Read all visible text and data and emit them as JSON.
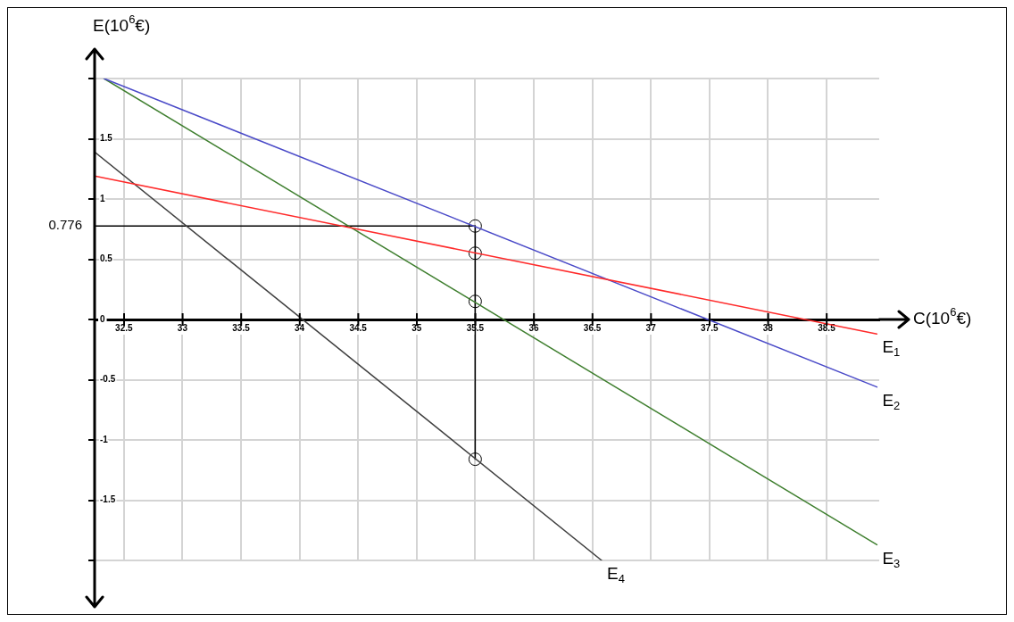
{
  "chart_data": {
    "type": "line",
    "xlabel": "C(10$^{6}$€)",
    "ylabel": "E(10$^{6}$€)",
    "xlim": [
      32.25,
      38.95
    ],
    "ylim": [
      -2,
      2
    ],
    "xticks": [
      32.5,
      33,
      33.5,
      34,
      34.5,
      35,
      35.5,
      36,
      36.5,
      37,
      37.5,
      38,
      38.5
    ],
    "yticks": [
      {
        "value": -2,
        "label": null
      },
      -1.5,
      -1,
      -0.5,
      0,
      0.5,
      1,
      1.5,
      {
        "value": 2,
        "label": null
      }
    ],
    "grid": true,
    "legend": false,
    "annotations": [
      {
        "text": "0.776",
        "x": 32.25,
        "y": 0.776
      }
    ],
    "series": [
      {
        "name": "E$_{1}$",
        "color": "#ff2a2a",
        "x": [
          32.25,
          38.93
        ],
        "values": [
          1.19,
          -0.12
        ]
      },
      {
        "name": "E$_{2}$",
        "color": "#4a4ac8",
        "x": [
          32.33,
          38.93
        ],
        "values": [
          2.0,
          -0.56
        ]
      },
      {
        "name": "E$_{3}$",
        "color": "#3f7f2f",
        "x": [
          32.33,
          38.93
        ],
        "values": [
          2.0,
          -1.87
        ]
      },
      {
        "name": "E$_{4}$",
        "color": "#404040",
        "x": [
          32.25,
          36.58
        ],
        "values": [
          1.39,
          -2.0
        ]
      },
      {
        "type": "line",
        "color": "#000000",
        "x": [
          32.25,
          35.5
        ],
        "values": [
          0.776,
          0.776
        ]
      },
      {
        "type": "line",
        "color": "#000000",
        "x": [
          35.5,
          35.5
        ],
        "values": [
          0.776,
          -1.16
        ]
      },
      {
        "type": "scatter",
        "marker": "circle",
        "color": "#000000",
        "x": [
          35.5,
          35.5,
          35.5,
          35.5
        ],
        "values": [
          0.776,
          0.55,
          0.15,
          -1.16
        ]
      }
    ]
  }
}
